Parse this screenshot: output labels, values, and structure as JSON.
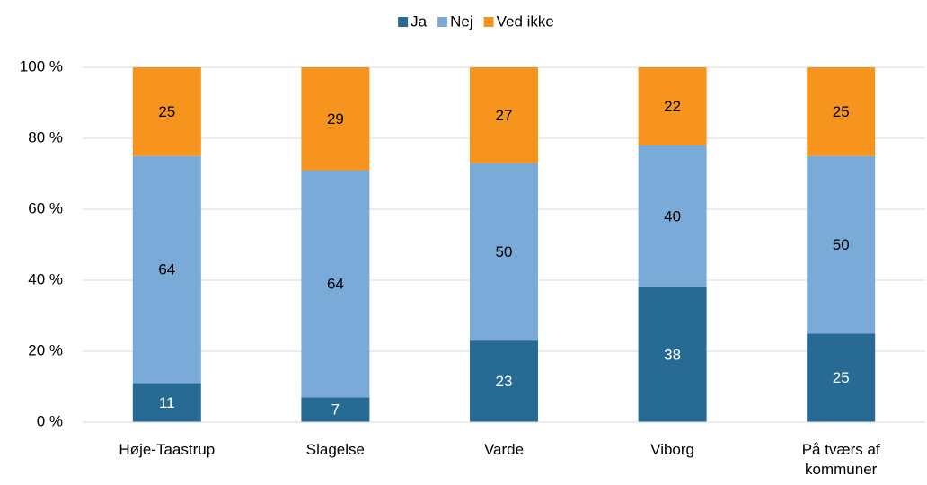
{
  "chart_data": {
    "type": "stacked_bar",
    "categories": [
      "Høje-Taastrup",
      "Slagelse",
      "Varde",
      "Viborg",
      "På tværs af kommuner"
    ],
    "series": [
      {
        "name": "Ja",
        "color": "#276a93",
        "values": [
          11,
          7,
          23,
          38,
          25
        ]
      },
      {
        "name": "Nej",
        "color": "#7aaad8",
        "values": [
          64,
          64,
          50,
          40,
          50
        ]
      },
      {
        "name": "Ved ikke",
        "color": "#f7941d",
        "values": [
          25,
          29,
          27,
          22,
          25
        ]
      }
    ],
    "ylim": [
      0,
      100
    ],
    "yticks": [
      {
        "value": 0,
        "label": "0 %"
      },
      {
        "value": 20,
        "label": "20 %"
      },
      {
        "value": 40,
        "label": "40 %"
      },
      {
        "value": 60,
        "label": "60 %"
      },
      {
        "value": 80,
        "label": "80 %"
      },
      {
        "value": 100,
        "label": "100 %"
      }
    ],
    "grid": true,
    "legend": "top"
  }
}
